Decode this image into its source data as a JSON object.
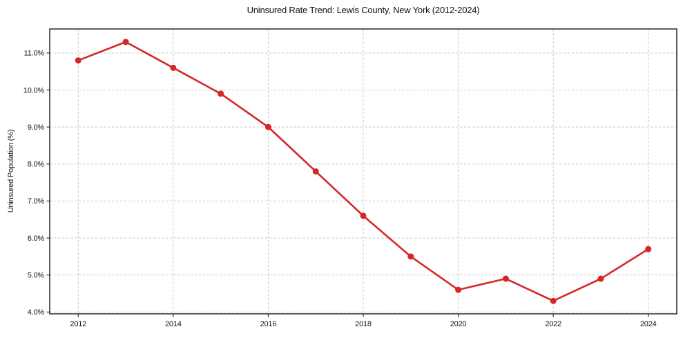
{
  "chart_data": {
    "type": "line",
    "title": "Uninsured Rate Trend: Lewis County, New York (2012-2024)",
    "xlabel": "",
    "ylabel": "Uninsured Population (%)",
    "x": [
      2012,
      2013,
      2014,
      2015,
      2016,
      2017,
      2018,
      2019,
      2020,
      2021,
      2022,
      2023,
      2024
    ],
    "values": [
      10.8,
      11.3,
      10.6,
      9.9,
      9.0,
      7.8,
      6.6,
      5.5,
      4.6,
      4.9,
      4.3,
      4.9,
      5.7
    ],
    "x_ticks": [
      2012,
      2014,
      2016,
      2018,
      2020,
      2022,
      2024
    ],
    "x_tick_labels": [
      "2012",
      "2014",
      "2016",
      "2018",
      "2020",
      "2022",
      "2024"
    ],
    "y_ticks": [
      4,
      5,
      6,
      7,
      8,
      9,
      10,
      11
    ],
    "y_tick_labels": [
      "4.0%",
      "5.0%",
      "6.0%",
      "7.0%",
      "8.0%",
      "9.0%",
      "10.0%",
      "11.0%"
    ],
    "xlim": [
      2011.4,
      2024.6
    ],
    "ylim": [
      3.95,
      11.65
    ],
    "grid": true,
    "legend_position": "none",
    "line_color": "#d62728",
    "marker": "circle",
    "marker_radius": 4.5,
    "grid_color": "#c9c9c9",
    "axis_color": "#1a1a1a",
    "text_color": "#111111",
    "background_color": "#ffffff"
  }
}
